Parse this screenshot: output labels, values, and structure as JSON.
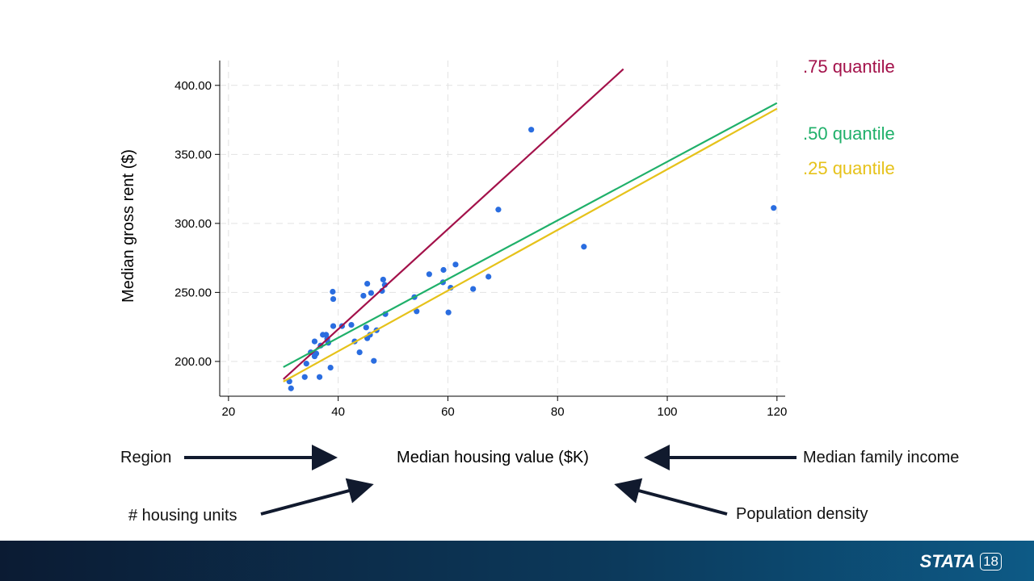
{
  "chart_data": {
    "type": "scatter",
    "xlabel": "Median housing value ($K)",
    "ylabel": "Median gross rent ($)",
    "xlim": [
      18.4,
      121.5
    ],
    "ylim": [
      174.8,
      418
    ],
    "x_ticks": [
      "20",
      "40",
      "60",
      "80",
      "100",
      "120"
    ],
    "x_tick_values": [
      20,
      40,
      60,
      80,
      100,
      120
    ],
    "y_ticks": [
      "200.00",
      "250.00",
      "300.00",
      "350.00",
      "400.00"
    ],
    "y_tick_values": [
      200,
      250,
      300,
      350,
      400
    ],
    "grid": true,
    "points_color": "#2a6de0",
    "points": [
      [
        31.1,
        185.5
      ],
      [
        31.4,
        180.5
      ],
      [
        33.9,
        188.7
      ],
      [
        36.6,
        188.7
      ],
      [
        38.6,
        195.5
      ],
      [
        34.2,
        198.4
      ],
      [
        35.7,
        214.5
      ],
      [
        35.0,
        206.6
      ],
      [
        35.7,
        203.7
      ],
      [
        36.0,
        205.7
      ],
      [
        36.8,
        211.5
      ],
      [
        37.2,
        219.3
      ],
      [
        37.8,
        219.3
      ],
      [
        38.0,
        216.4
      ],
      [
        38.2,
        213.5
      ],
      [
        39.0,
        250.5
      ],
      [
        39.1,
        245.2
      ],
      [
        39.1,
        225.6
      ],
      [
        40.7,
        225.6
      ],
      [
        42.4,
        226.5
      ],
      [
        43.0,
        214.5
      ],
      [
        43.9,
        206.6
      ],
      [
        45.1,
        224.6
      ],
      [
        45.3,
        216.8
      ],
      [
        45.8,
        219.3
      ],
      [
        47.0,
        222.6
      ],
      [
        46.5,
        200.4
      ],
      [
        45.3,
        256.3
      ],
      [
        44.6,
        247.6
      ],
      [
        46.0,
        249.6
      ],
      [
        48.2,
        259.3
      ],
      [
        48.5,
        255.4
      ],
      [
        48.0,
        251.1
      ],
      [
        48.6,
        234.3
      ],
      [
        53.9,
        246.6
      ],
      [
        54.3,
        236.3
      ],
      [
        56.6,
        263.2
      ],
      [
        59.2,
        266.3
      ],
      [
        59.1,
        257.3
      ],
      [
        60.1,
        235.5
      ],
      [
        60.5,
        253.4
      ],
      [
        64.6,
        252.5
      ],
      [
        61.4,
        270.2
      ],
      [
        67.4,
        261.4
      ],
      [
        69.2,
        310.0
      ],
      [
        75.2,
        367.9
      ],
      [
        84.8,
        283.1
      ],
      [
        119.4,
        311.2
      ]
    ],
    "series": [
      {
        "name": ".75 quantile",
        "color": "#a3114a",
        "x": [
          30.0,
          92.0
        ],
        "y": [
          187.1,
          411.8
        ]
      },
      {
        "name": ".50 quantile",
        "color": "#1fb06a",
        "x": [
          30.0,
          120.0
        ],
        "y": [
          195.9,
          387.2
        ]
      },
      {
        "name": ".25 quantile",
        "color": "#e6c21a",
        "x": [
          30.0,
          120.0
        ],
        "y": [
          185.4,
          383.1
        ]
      }
    ]
  },
  "annotations": {
    "region": "Region",
    "family_income": "Median family income",
    "housing_units": "# housing units",
    "population_density": "Population density"
  },
  "footer": {
    "logo_word": "STATA",
    "logo_version": "18"
  }
}
